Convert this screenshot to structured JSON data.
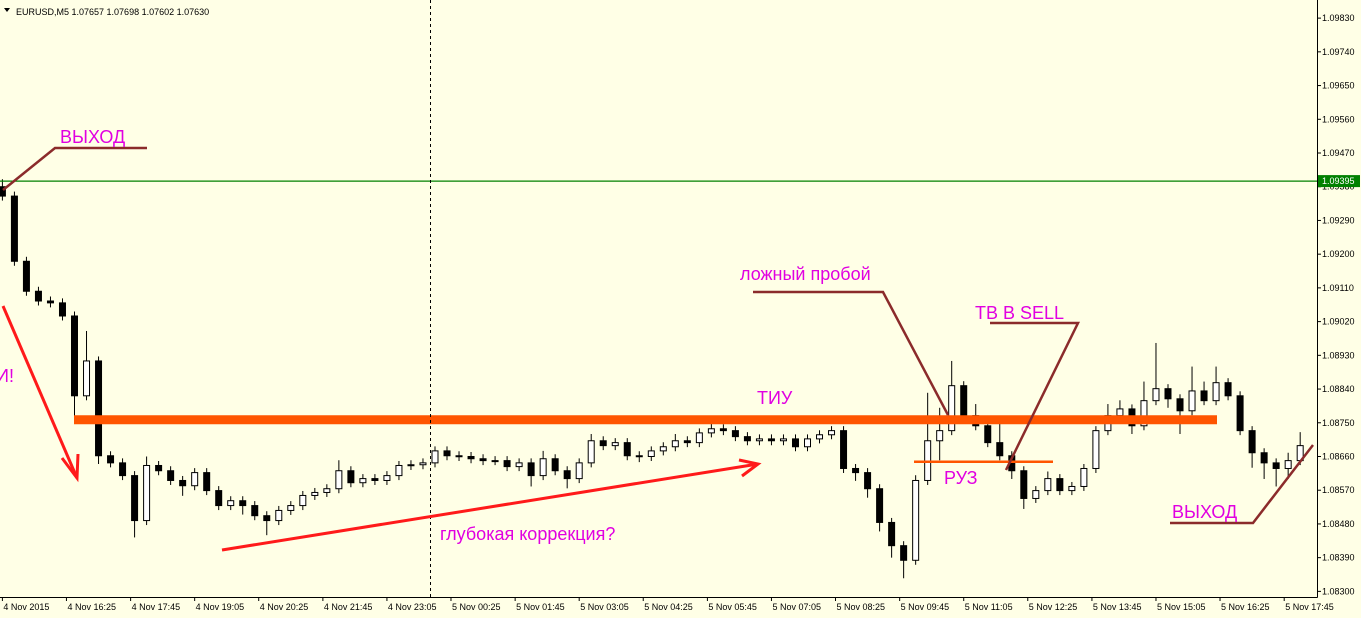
{
  "chart_data": {
    "type": "candlestick",
    "title": "EURUSD,M5  1.07657 1.07698 1.07602 1.07630",
    "ylim": [
      1.08285,
      1.09865
    ],
    "xlim": [
      -0.2,
      109.4
    ],
    "yticks": [
      {
        "value": 1.0983,
        "label": "1.09830"
      },
      {
        "value": 1.0974,
        "label": "1.09740"
      },
      {
        "value": 1.0965,
        "label": "1.09650"
      },
      {
        "value": 1.0956,
        "label": "1.09560"
      },
      {
        "value": 1.0947,
        "label": "1.09470"
      },
      {
        "value": 1.0938,
        "label": "1.09380"
      },
      {
        "value": 1.0929,
        "label": "1.09290"
      },
      {
        "value": 1.092,
        "label": "1.09200"
      },
      {
        "value": 1.0911,
        "label": "1.09110"
      },
      {
        "value": 1.0902,
        "label": "1.09020"
      },
      {
        "value": 1.0893,
        "label": "1.08930"
      },
      {
        "value": 1.0884,
        "label": "1.08840"
      },
      {
        "value": 1.0875,
        "label": "1.08750"
      },
      {
        "value": 1.0866,
        "label": "1.08660"
      },
      {
        "value": 1.0857,
        "label": "1.08570"
      },
      {
        "value": 1.0848,
        "label": "1.08480"
      },
      {
        "value": 1.0839,
        "label": "1.08390"
      },
      {
        "value": 1.083,
        "label": "1.08300"
      }
    ],
    "xticks": [
      {
        "value": 0,
        "label": "4 Nov 2015"
      },
      {
        "value": 5.33,
        "label": "4 Nov 16:25"
      },
      {
        "value": 10.67,
        "label": "4 Nov 17:45"
      },
      {
        "value": 16,
        "label": "4 Nov 19:05"
      },
      {
        "value": 21.33,
        "label": "4 Nov 20:25"
      },
      {
        "value": 26.67,
        "label": "4 Nov 21:45"
      },
      {
        "value": 32,
        "label": "4 Nov 23:05"
      },
      {
        "value": 37.33,
        "label": "5 Nov 00:25"
      },
      {
        "value": 42.67,
        "label": "5 Nov 01:45"
      },
      {
        "value": 48,
        "label": "5 Nov 03:05"
      },
      {
        "value": 53.33,
        "label": "5 Nov 04:25"
      },
      {
        "value": 58.67,
        "label": "5 Nov 05:45"
      },
      {
        "value": 64,
        "label": "5 Nov 07:05"
      },
      {
        "value": 69.33,
        "label": "5 Nov 08:25"
      },
      {
        "value": 74.67,
        "label": "5 Nov 09:45"
      },
      {
        "value": 80,
        "label": "5 Nov 11:05"
      },
      {
        "value": 85.33,
        "label": "5 Nov 12:25"
      },
      {
        "value": 90.67,
        "label": "5 Nov 13:45"
      },
      {
        "value": 96,
        "label": "5 Nov 15:05"
      },
      {
        "value": 101.33,
        "label": "5 Nov 16:25"
      },
      {
        "value": 106.67,
        "label": "5 Nov 17:45"
      }
    ],
    "up_color": "#ffffff",
    "down_color": "#000000",
    "open": [
      1.0938,
      1.09355,
      1.09181,
      1.09101,
      1.09075,
      1.0907,
      1.09035,
      1.08822,
      1.08915,
      1.08662,
      1.08643,
      1.08609,
      1.08489,
      1.08636,
      1.08622,
      1.08596,
      1.08582,
      1.08617,
      1.08569,
      1.08529,
      1.08542,
      1.08529,
      1.08502,
      1.08489,
      1.08516,
      1.08529,
      1.08556,
      1.08564,
      1.08574,
      1.08622,
      1.0859,
      1.08601,
      1.08596,
      1.08609,
      1.08636,
      1.08638,
      1.08643,
      1.08675,
      1.08662,
      1.0866,
      1.08654,
      1.08649,
      1.08649,
      1.08633,
      1.08643,
      1.08609,
      1.08654,
      1.08622,
      1.08601,
      1.08643,
      1.08702,
      1.08689,
      1.08697,
      1.08662,
      1.0866,
      1.08675,
      1.08686,
      1.08702,
      1.08697,
      1.08723,
      1.08734,
      1.08729,
      1.08713,
      1.08702,
      1.08707,
      1.08702,
      1.08707,
      1.08686,
      1.08707,
      1.08718,
      1.08729,
      1.08628,
      1.08617,
      1.08574,
      1.08484,
      1.08422,
      1.08383,
      1.08596,
      1.08702,
      1.08729,
      1.08849,
      1.08769,
      1.08742,
      1.08697,
      1.08662,
      1.08622,
      1.08548,
      1.08569,
      1.08601,
      1.08569,
      1.0858,
      1.08628,
      1.08729,
      1.08769,
      1.08787,
      1.08742,
      1.08809,
      1.08841,
      1.08814,
      1.08782,
      1.08835,
      1.08809,
      1.08857,
      1.08822,
      1.08729,
      1.0867,
      1.08643,
      1.08628,
      1.08649
    ],
    "high": [
      1.094,
      1.09367,
      1.09193,
      1.09113,
      1.09087,
      1.09082,
      1.09047,
      1.08995,
      1.08927,
      1.08674,
      1.08655,
      1.08621,
      1.0866,
      1.08648,
      1.08634,
      1.08608,
      1.08629,
      1.08629,
      1.08581,
      1.08554,
      1.08554,
      1.08541,
      1.08514,
      1.08528,
      1.08541,
      1.08568,
      1.08576,
      1.08586,
      1.0865,
      1.08634,
      1.08613,
      1.08613,
      1.08621,
      1.08648,
      1.0865,
      1.08655,
      1.08687,
      1.08687,
      1.08674,
      1.08672,
      1.08666,
      1.08661,
      1.08661,
      1.08655,
      1.08655,
      1.08675,
      1.08666,
      1.08634,
      1.08655,
      1.0872,
      1.08714,
      1.08709,
      1.08709,
      1.08674,
      1.08687,
      1.08698,
      1.0872,
      1.08714,
      1.08735,
      1.0876,
      1.08746,
      1.08741,
      1.08725,
      1.08719,
      1.08719,
      1.08719,
      1.08719,
      1.08719,
      1.0873,
      1.08741,
      1.08741,
      1.0864,
      1.08629,
      1.08586,
      1.08496,
      1.08434,
      1.0861,
      1.0883,
      1.0879,
      1.08915,
      1.08861,
      1.088,
      1.0876,
      1.0876,
      1.08674,
      1.08634,
      1.08581,
      1.0862,
      1.08613,
      1.08592,
      1.0864,
      1.08741,
      1.088,
      1.0881,
      1.08799,
      1.0886,
      1.08963,
      1.08853,
      1.08826,
      1.089,
      1.0886,
      1.089,
      1.08869,
      1.08834,
      1.08741,
      1.08682,
      1.08655,
      1.0867,
      1.08725
    ],
    "low": [
      1.09343,
      1.09169,
      1.09089,
      1.09063,
      1.09058,
      1.09023,
      1.0876,
      1.0881,
      1.0864,
      1.08631,
      1.08597,
      1.08444,
      1.08477,
      1.0861,
      1.08584,
      1.08555,
      1.0857,
      1.08557,
      1.08517,
      1.08517,
      1.08505,
      1.0849,
      1.0845,
      1.08477,
      1.08504,
      1.08517,
      1.08544,
      1.08552,
      1.08562,
      1.08578,
      1.08578,
      1.08584,
      1.08584,
      1.08597,
      1.08624,
      1.08626,
      1.08631,
      1.0865,
      1.08648,
      1.08642,
      1.08637,
      1.08637,
      1.08621,
      1.08621,
      1.0858,
      1.08597,
      1.0861,
      1.08575,
      1.08589,
      1.08631,
      1.08677,
      1.08677,
      1.0865,
      1.08645,
      1.08648,
      1.08663,
      1.08674,
      1.08685,
      1.08685,
      1.08711,
      1.08717,
      1.08701,
      1.0869,
      1.0869,
      1.0869,
      1.0869,
      1.08674,
      1.08674,
      1.08695,
      1.08706,
      1.08616,
      1.08595,
      1.0855,
      1.0846,
      1.0839,
      1.08335,
      1.08371,
      1.08584,
      1.0865,
      1.08717,
      1.08757,
      1.0873,
      1.08685,
      1.0865,
      1.086,
      1.0852,
      1.08536,
      1.08557,
      1.08557,
      1.08557,
      1.08568,
      1.08616,
      1.08717,
      1.08757,
      1.0872,
      1.0873,
      1.08797,
      1.0879,
      1.0872,
      1.0877,
      1.08797,
      1.08797,
      1.0881,
      1.08717,
      1.0863,
      1.086,
      1.0858,
      1.086,
      1.08637
    ],
    "close": [
      1.09355,
      1.09181,
      1.09101,
      1.09075,
      1.0907,
      1.09035,
      1.08822,
      1.08915,
      1.08662,
      1.08643,
      1.08609,
      1.08489,
      1.08636,
      1.08622,
      1.08596,
      1.08582,
      1.08617,
      1.08569,
      1.08529,
      1.08542,
      1.08529,
      1.08502,
      1.08489,
      1.08516,
      1.08529,
      1.08556,
      1.08564,
      1.08574,
      1.08622,
      1.0859,
      1.08601,
      1.08596,
      1.08609,
      1.08636,
      1.08638,
      1.08643,
      1.08675,
      1.08662,
      1.0866,
      1.08654,
      1.08649,
      1.08649,
      1.08633,
      1.08643,
      1.08609,
      1.08654,
      1.08622,
      1.08601,
      1.08643,
      1.08702,
      1.08689,
      1.08697,
      1.08662,
      1.0866,
      1.08675,
      1.08686,
      1.08702,
      1.08697,
      1.08723,
      1.08734,
      1.08729,
      1.08713,
      1.08702,
      1.08707,
      1.08702,
      1.08707,
      1.08686,
      1.08707,
      1.08718,
      1.08729,
      1.08628,
      1.08617,
      1.08574,
      1.08484,
      1.08422,
      1.08383,
      1.08596,
      1.08702,
      1.08729,
      1.08849,
      1.08769,
      1.08742,
      1.08697,
      1.08662,
      1.08622,
      1.08548,
      1.08569,
      1.08601,
      1.08569,
      1.0858,
      1.08628,
      1.08729,
      1.08769,
      1.08787,
      1.08742,
      1.08809,
      1.08841,
      1.08814,
      1.08782,
      1.08835,
      1.08809,
      1.08857,
      1.08822,
      1.08729,
      1.0867,
      1.08643,
      1.08628,
      1.08649,
      1.08689
    ],
    "levels": [
      {
        "value": 1.09395,
        "label": "1.09395",
        "color": "#008000"
      },
      {
        "value": 1.08758,
        "color": "#ff5500"
      },
      {
        "value": 1.08646,
        "color": "#ff5500"
      }
    ],
    "annotations": [
      "ВЫХОД",
      "И!",
      "ложный пробой",
      "ТИУ",
      "ТВ В SELL",
      "РУЗ",
      "глубокая коррекция?",
      "ВЫХОД"
    ]
  }
}
